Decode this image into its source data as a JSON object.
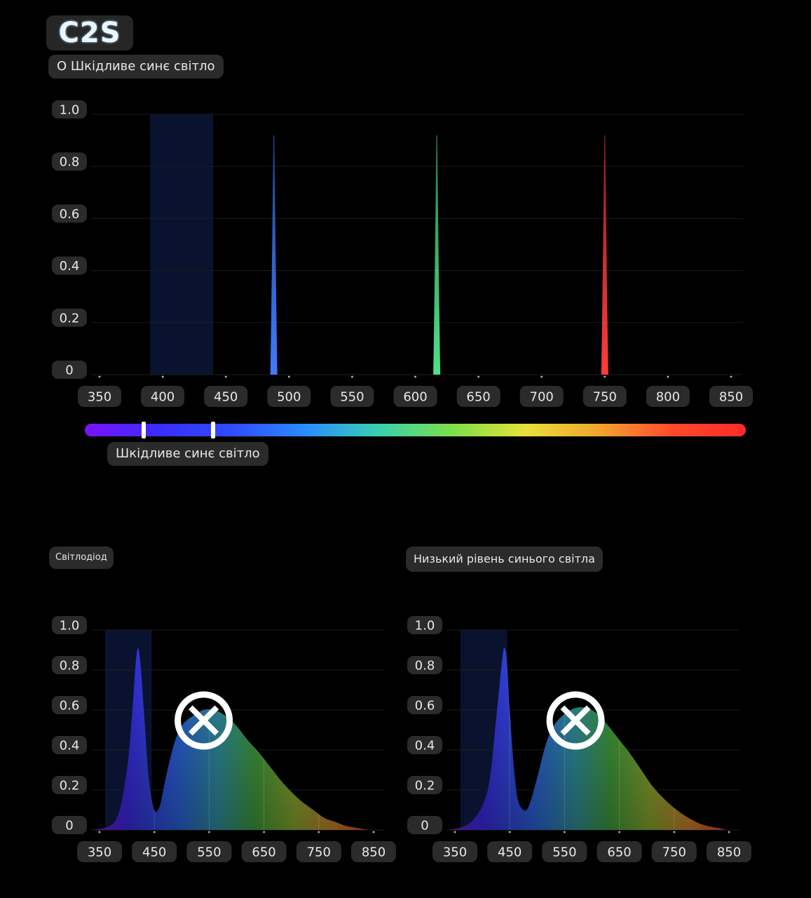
{
  "header": {
    "brand": "C2S",
    "subtitle": "О Шкідливе синє світло"
  },
  "spectrum_bar": {
    "label": "Шкідливе синє світло",
    "colors": [
      "#7a12ff",
      "#3b2cff",
      "#2f4cff",
      "#2a8dff",
      "#38d0b0",
      "#7be04a",
      "#e6e13a",
      "#f2a530",
      "#ff4a2a",
      "#ff2a2a"
    ]
  },
  "colors": {
    "blue": "#3d7bff",
    "green": "#4fe08a",
    "red": "#ff3b3b",
    "highlight": "#0a1433",
    "tick_pill": "#2b2b2b"
  },
  "icons": {
    "left_mark": "cross-circle-icon",
    "right_mark": "cross-circle-icon"
  },
  "chart_data": [
    {
      "type": "line",
      "title": "",
      "xlabel": "",
      "ylabel": "",
      "xlim": [
        350,
        850
      ],
      "ylim": [
        0,
        1.0
      ],
      "x_ticks": [
        350,
        400,
        450,
        500,
        550,
        600,
        650,
        700,
        750,
        800,
        850
      ],
      "y_ticks": [
        "0",
        "0.2",
        "0.4",
        "0.6",
        "0.8",
        "1.0"
      ],
      "grid": true,
      "highlight_band": [
        390,
        440
      ],
      "series": [
        {
          "x": [
            488
          ],
          "y": [
            0.92
          ],
          "color": "#3d7bff"
        },
        {
          "x": [
            617
          ],
          "y": [
            0.92
          ],
          "color": "#4fe08a"
        },
        {
          "x": [
            750
          ],
          "y": [
            0.92
          ],
          "color": "#ff3b3b"
        }
      ]
    },
    {
      "type": "area",
      "title": "Світлодіод",
      "xlim": [
        350,
        850
      ],
      "ylim": [
        0,
        1.0
      ],
      "x_ticks": [
        350,
        450,
        550,
        650,
        750,
        850
      ],
      "y_ticks": [
        "0",
        "0.2",
        "0.4",
        "0.6",
        "0.8",
        "1.0"
      ],
      "grid": true,
      "highlight_band": [
        360,
        445
      ],
      "series": [
        {
          "x": [
            340,
            380,
            400,
            410,
            415,
            420,
            425,
            432,
            440,
            450,
            460,
            470,
            485,
            500,
            520,
            540,
            560,
            580,
            600,
            620,
            640,
            660,
            680,
            700,
            720,
            740,
            760,
            780,
            800,
            820,
            840
          ],
          "y": [
            0.0,
            0.05,
            0.3,
            0.6,
            0.8,
            0.91,
            0.82,
            0.55,
            0.25,
            0.1,
            0.12,
            0.25,
            0.42,
            0.52,
            0.57,
            0.6,
            0.6,
            0.57,
            0.52,
            0.45,
            0.39,
            0.32,
            0.25,
            0.19,
            0.14,
            0.1,
            0.06,
            0.04,
            0.02,
            0.01,
            0.0
          ]
        }
      ]
    },
    {
      "type": "area",
      "title": "Низький рівень синього світла",
      "xlim": [
        350,
        850
      ],
      "ylim": [
        0,
        1.0
      ],
      "x_ticks": [
        350,
        450,
        550,
        650,
        750,
        850
      ],
      "y_ticks": [
        "0",
        "0.2",
        "0.4",
        "0.6",
        "0.8",
        "1.0"
      ],
      "grid": true,
      "highlight_band": [
        360,
        445
      ],
      "series": [
        {
          "x": [
            340,
            380,
            410,
            425,
            435,
            440,
            445,
            450,
            458,
            465,
            475,
            485,
            500,
            515,
            530,
            550,
            570,
            590,
            610,
            630,
            650,
            670,
            690,
            710,
            730,
            750,
            770,
            790,
            810,
            830,
            845
          ],
          "y": [
            0.0,
            0.04,
            0.2,
            0.55,
            0.82,
            0.91,
            0.84,
            0.6,
            0.3,
            0.15,
            0.1,
            0.12,
            0.26,
            0.42,
            0.52,
            0.58,
            0.61,
            0.61,
            0.58,
            0.52,
            0.45,
            0.38,
            0.3,
            0.22,
            0.16,
            0.11,
            0.07,
            0.04,
            0.02,
            0.01,
            0.0
          ]
        }
      ]
    }
  ]
}
